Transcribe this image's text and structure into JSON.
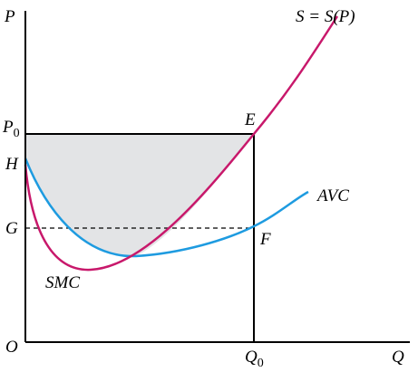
{
  "axes": {
    "y": "P",
    "x": "Q",
    "origin": "O"
  },
  "points": {
    "p0": {
      "main": "P",
      "sub": "0"
    },
    "h": "H",
    "g": "G",
    "e": "E",
    "f": "F",
    "q0": {
      "main": "Q",
      "sub": "0"
    }
  },
  "curves": {
    "supply": "S = S(P)",
    "avc": "AVC",
    "smc": "SMC"
  }
}
